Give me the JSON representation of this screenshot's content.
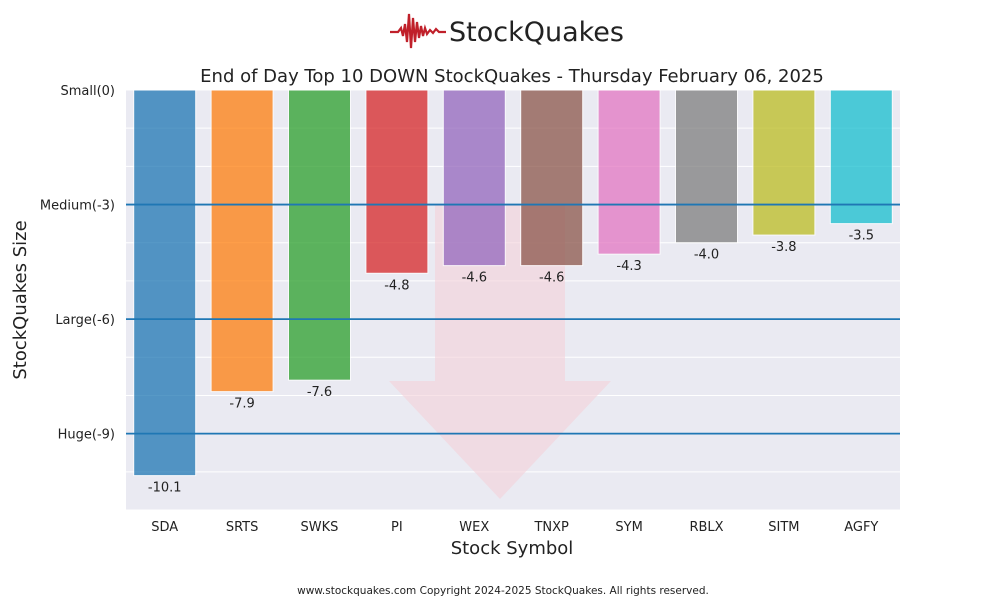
{
  "logo": {
    "text": "StockQuakes",
    "color": "#c0202a"
  },
  "footer": "www.stockquakes.com Copyright 2024-2025 StockQuakes. All rights reserved.",
  "chart_data": {
    "type": "bar",
    "title": "End of Day Top 10 DOWN StockQuakes - Thursday February 06, 2025",
    "xlabel": "Stock Symbol",
    "ylabel": "StockQuakes Size",
    "ylim": [
      -11,
      0
    ],
    "grid": true,
    "yticks": [
      {
        "value": 0,
        "label": "Small(0)"
      },
      {
        "value": -3,
        "label": "Medium(-3)"
      },
      {
        "value": -6,
        "label": "Large(-6)"
      },
      {
        "value": -9,
        "label": "Huge(-9)"
      }
    ],
    "reference_lines": [
      -3,
      -6,
      -9
    ],
    "reference_line_color": "#1f77b4",
    "categories": [
      "SDA",
      "SRTS",
      "SWKS",
      "PI",
      "WEX",
      "TNXP",
      "SYM",
      "RBLX",
      "SITM",
      "AGFY"
    ],
    "values": [
      -10.1,
      -7.9,
      -7.6,
      -4.8,
      -4.6,
      -4.6,
      -4.3,
      -4.0,
      -3.8,
      -3.5
    ],
    "data_labels": [
      "-10.1",
      "-7.9",
      "-7.6",
      "-4.8",
      "-4.6",
      "-4.6",
      "-4.3",
      "-4.0",
      "-3.8",
      "-3.5"
    ],
    "colors": [
      "#1f77b4",
      "#ff7f0e",
      "#2ca02c",
      "#d62728",
      "#9467bd",
      "#8c564b",
      "#e377c2",
      "#7f7f7f",
      "#bcbd22",
      "#17becf"
    ],
    "background_arrow": "down"
  }
}
